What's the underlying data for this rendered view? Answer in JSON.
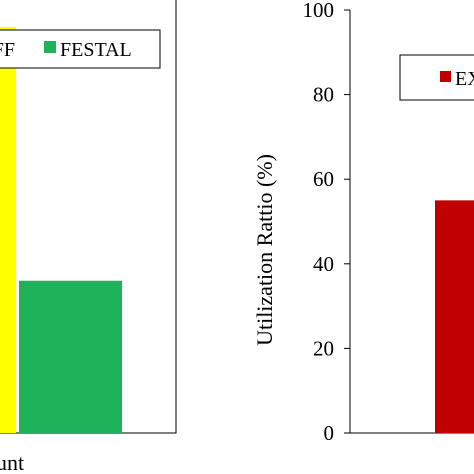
{
  "chart_data": [
    {
      "type": "bar",
      "title": "",
      "xlabel": "",
      "ylabel": "",
      "x_category_label_fragment": "unt",
      "legend": {
        "placement": "top",
        "entries": [
          {
            "label": "FF",
            "color": "#ffff00"
          },
          {
            "label": "FESTAL",
            "color": "#1fb25a"
          }
        ]
      },
      "series": [
        {
          "name": "FF",
          "values": [
            96
          ],
          "color": "#ffff00"
        },
        {
          "name": "FESTAL",
          "values": [
            36
          ],
          "color": "#1fb25a"
        }
      ]
    },
    {
      "type": "bar",
      "title": "",
      "xlabel": "",
      "ylabel": "Utilization Rattio (%)",
      "ylim": [
        0,
        100
      ],
      "yticks": [
        0,
        20,
        40,
        60,
        80,
        100
      ],
      "grid": false,
      "legend": {
        "placement": "top-right",
        "entries": [
          {
            "label": "EX",
            "color": "#c00000"
          }
        ]
      },
      "series": [
        {
          "name": "EX",
          "values": [
            55
          ],
          "color": "#c00000"
        }
      ]
    }
  ]
}
